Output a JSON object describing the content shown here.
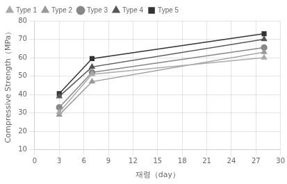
{
  "chart_data": {
    "type": "line",
    "xlabel": "재령（day）",
    "ylabel": "Compressive Strength（MPa）",
    "x": [
      3,
      7,
      28
    ],
    "series": [
      {
        "name": "Type 1",
        "color": "#aaaaaa",
        "marker": "triangle",
        "line_style": "solid",
        "values": [
          30.5,
          51.0,
          60.0
        ]
      },
      {
        "name": "Type 2",
        "color": "#999999",
        "marker": "triangle",
        "line_style": "solid",
        "values": [
          29.0,
          47.0,
          63.0
        ]
      },
      {
        "name": "Type 3",
        "color": "#888888",
        "marker": "circle",
        "line_style": "solid",
        "values": [
          33.0,
          52.0,
          65.5
        ]
      },
      {
        "name": "Type 4",
        "color": "#555555",
        "marker": "triangle",
        "line_style": "solid",
        "values": [
          39.0,
          55.0,
          70.0
        ]
      },
      {
        "name": "Type 5",
        "color": "#333333",
        "marker": "square",
        "line_style": "solid",
        "values": [
          40.5,
          59.5,
          73.0
        ]
      }
    ],
    "xlim": [
      0,
      30
    ],
    "ylim": [
      10,
      80
    ],
    "xticks": [
      0,
      3,
      6,
      9,
      12,
      15,
      18,
      21,
      24,
      27,
      30
    ],
    "yticks": [
      10,
      20,
      30,
      40,
      50,
      60,
      70,
      80
    ],
    "grid": true,
    "legend": "upper left"
  }
}
